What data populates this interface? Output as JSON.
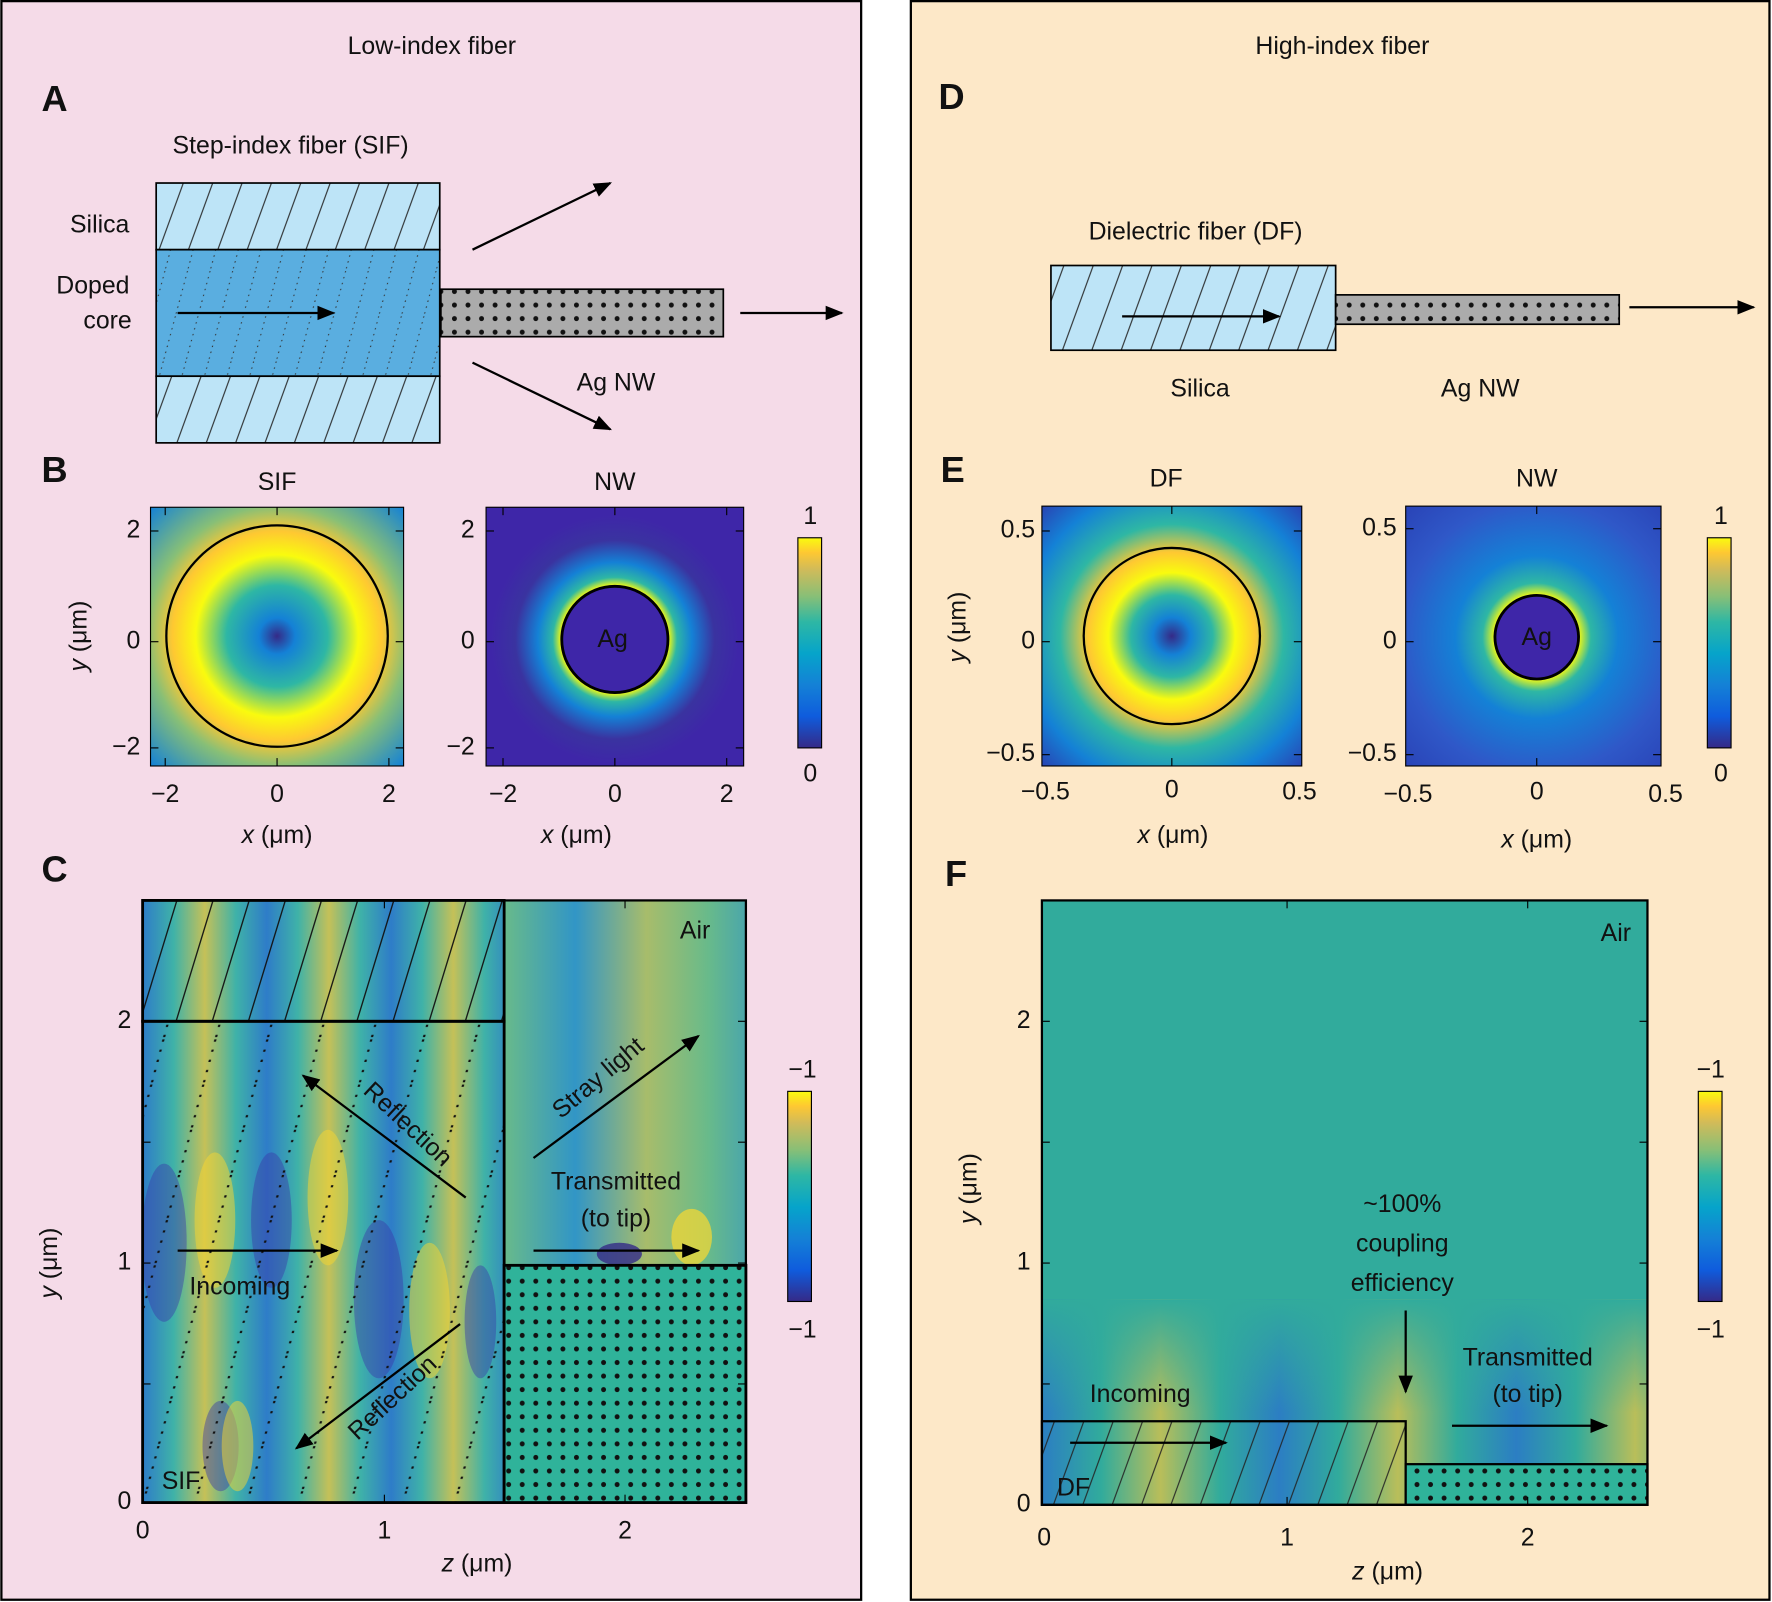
{
  "left": {
    "title": "Low-index fiber",
    "a": {
      "label": "A",
      "title": "Step-index fiber (SIF)",
      "cladding": "Silica",
      "core": [
        "Doped",
        "core"
      ],
      "wire": "Ag NW"
    },
    "b": {
      "label": "B",
      "map1_title": "SIF",
      "map2_title": "NW",
      "wire_label": "Ag",
      "y_label": {
        "var": "y",
        "unit": " (μm)"
      },
      "x_label": {
        "var": "x",
        "unit": " (μm)"
      },
      "map1_yticks": [
        "2",
        "0",
        "−2"
      ],
      "map1_xticks": [
        "−2",
        "0",
        "2"
      ],
      "map2_yticks": [
        "2",
        "0",
        "−2"
      ],
      "map2_xticks": [
        "−2",
        "0",
        "2"
      ],
      "colorbar_ticks": [
        "1",
        "0"
      ]
    },
    "c": {
      "label": "C",
      "y_label": {
        "var": "y",
        "unit": " (μm)"
      },
      "x_label": {
        "var": "z",
        "unit": " (μm)"
      },
      "yticks": [
        "2",
        "1",
        "0"
      ],
      "xticks": [
        "0",
        "1",
        "2"
      ],
      "medium": "Air",
      "fiber": "SIF",
      "colorbar_ticks": [
        "−1",
        "−1"
      ],
      "annotations": {
        "reflection_up": "Reflection",
        "reflection_down": "Reflection",
        "stray": "Stray light",
        "transmitted": [
          "Transmitted",
          "(to tip)"
        ],
        "incoming": "Incoming"
      }
    }
  },
  "right": {
    "title": "High-index fiber",
    "d": {
      "label": "D",
      "title": "Dielectric fiber (DF)",
      "fiber": "Silica",
      "wire": "Ag NW"
    },
    "e": {
      "label": "E",
      "map1_title": "DF",
      "map2_title": "NW",
      "wire_label": "Ag",
      "y_label": {
        "var": "y",
        "unit": " (μm)"
      },
      "x_label": {
        "var": "x",
        "unit": " (μm)"
      },
      "map1_yticks": [
        "0.5",
        "0",
        "−0.5"
      ],
      "map1_xticks": [
        "−0.5",
        "0",
        "0.5"
      ],
      "map2_yticks": [
        "0.5",
        "0",
        "−0.5"
      ],
      "map2_xticks": [
        "−0.5",
        "0",
        "0.5"
      ],
      "colorbar_ticks": [
        "1",
        "0"
      ]
    },
    "f": {
      "label": "F",
      "y_label": {
        "var": "y",
        "unit": " (μm)"
      },
      "x_label": {
        "var": "z",
        "unit": " (μm)"
      },
      "yticks": [
        "2",
        "1",
        "0"
      ],
      "xticks": [
        "0",
        "1",
        "2"
      ],
      "medium": "Air",
      "fiber": "DF",
      "colorbar_ticks": [
        "−1",
        "−1"
      ],
      "annotations": {
        "coupling": [
          "~100%",
          "coupling",
          "efficiency"
        ],
        "transmitted": [
          "Transmitted",
          "(to tip)"
        ],
        "incoming": "Incoming"
      }
    }
  }
}
